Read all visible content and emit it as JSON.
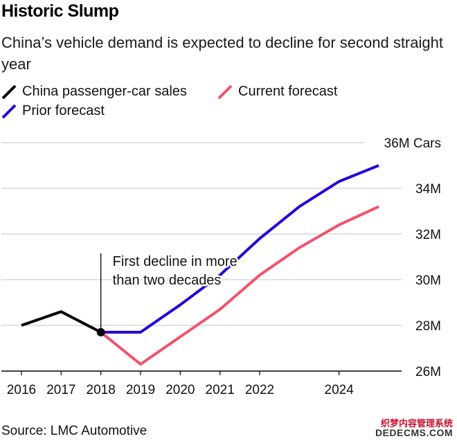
{
  "title": "Historic Slump",
  "subtitle": "China’s vehicle demand is expected to decline for second straight year",
  "legend": [
    {
      "label": "China passenger-car sales",
      "color": "#000000",
      "icon": "black-line-icon"
    },
    {
      "label": "Current forecast",
      "color": "#f4516c",
      "icon": "red-line-icon"
    },
    {
      "label": "Prior forecast",
      "color": "#2800d7",
      "icon": "blue-line-icon"
    }
  ],
  "source": "Source: LMC Automotive",
  "watermark": {
    "cn": "织梦内容管理系统",
    "en": "DEDECMS.COM"
  },
  "chart_data": {
    "type": "line",
    "title": "Historic Slump",
    "ylabel": "Cars",
    "x_ticks": [
      2016,
      2017,
      2018,
      2019,
      2020,
      2021,
      2022,
      2024
    ],
    "x_tick_labels": [
      "2016",
      "2017",
      "2018",
      "2019",
      "2020",
      "2021",
      "2022",
      "2024"
    ],
    "xlim": [
      2016,
      2025
    ],
    "ylim": [
      26,
      36
    ],
    "y_ticks": [
      26,
      28,
      30,
      32,
      34,
      36
    ],
    "y_tick_labels": [
      "26M",
      "28M",
      "30M",
      "32M",
      "34M",
      "36M Cars"
    ],
    "grid": true,
    "series": [
      {
        "name": "China passenger-car sales",
        "color": "#000000",
        "x": [
          2016,
          2017,
          2018
        ],
        "values": [
          28.0,
          28.6,
          27.7
        ]
      },
      {
        "name": "Prior forecast",
        "color": "#2800d7",
        "x": [
          2018,
          2019,
          2020,
          2021,
          2022,
          2023,
          2024,
          2025
        ],
        "values": [
          27.7,
          27.7,
          28.9,
          30.2,
          31.8,
          33.2,
          34.3,
          35.0
        ]
      },
      {
        "name": "Current forecast",
        "color": "#f4516c",
        "x": [
          2018,
          2019,
          2020,
          2021,
          2022,
          2023,
          2024,
          2025
        ],
        "values": [
          27.7,
          26.3,
          27.5,
          28.7,
          30.2,
          31.4,
          32.4,
          33.2
        ]
      }
    ],
    "annotation": {
      "text_lines": [
        "First decline in more",
        "than two decades"
      ],
      "x": 2018,
      "y": 27.7
    }
  }
}
